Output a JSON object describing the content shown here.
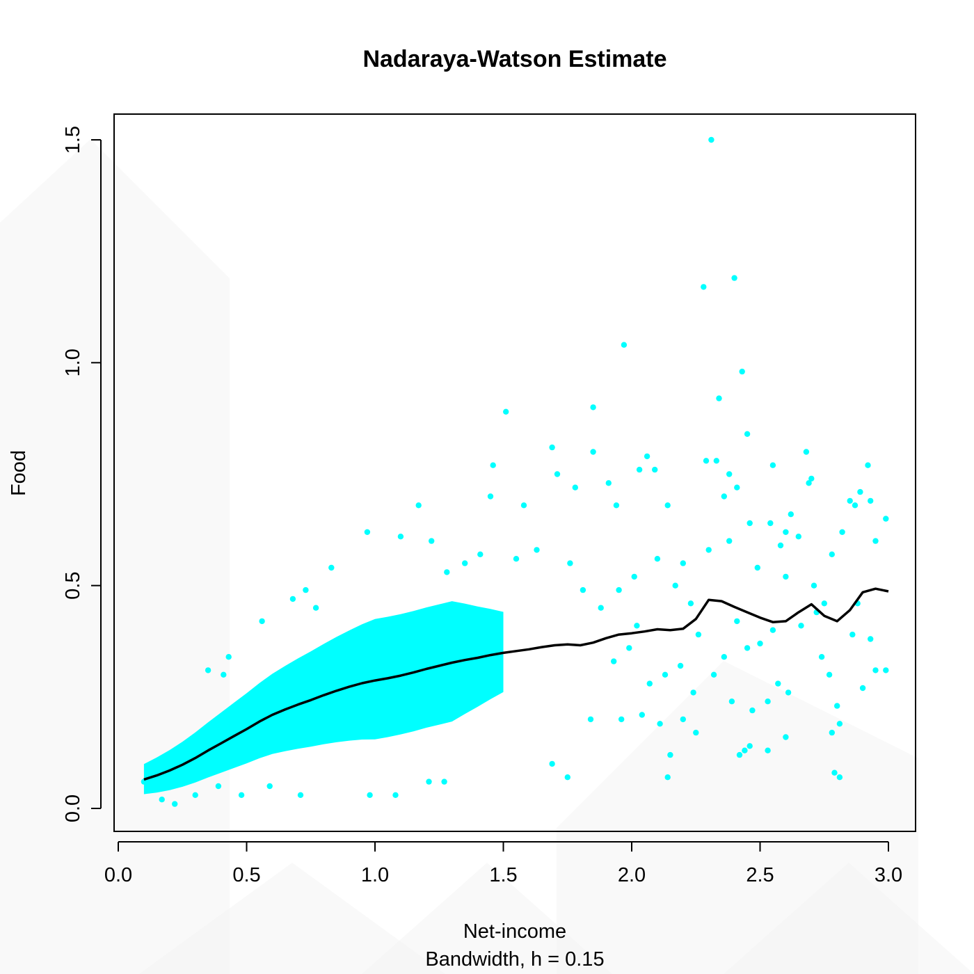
{
  "chart_data": {
    "type": "scatter",
    "title": "Nadaraya-Watson Estimate",
    "xlabel": "Net-income",
    "ylabel": "Food",
    "subtitle": "Bandwidth, h =  0.15",
    "xlim": [
      0.0,
      3.0
    ],
    "ylim": [
      0.0,
      1.5
    ],
    "xticks": [
      0.0,
      0.5,
      1.0,
      1.5,
      2.0,
      2.5,
      3.0
    ],
    "xtick_labels": [
      "0.0",
      "0.5",
      "1.0",
      "1.5",
      "2.0",
      "2.5",
      "3.0"
    ],
    "yticks": [
      0.0,
      0.5,
      1.0,
      1.5
    ],
    "ytick_labels": [
      "0.0",
      "0.5",
      "1.0",
      "1.5"
    ],
    "grid": false,
    "legend": "none",
    "colors": {
      "points": "#00ffff",
      "line": "#000000"
    },
    "series": [
      {
        "type": "scatter",
        "points": [
          [
            2.31,
            1.5
          ],
          [
            2.28,
            1.17
          ],
          [
            2.4,
            1.19
          ],
          [
            1.97,
            1.04
          ],
          [
            2.43,
            0.98
          ],
          [
            2.34,
            0.92
          ],
          [
            1.85,
            0.9
          ],
          [
            1.51,
            0.89
          ],
          [
            2.45,
            0.84
          ],
          [
            1.69,
            0.81
          ],
          [
            1.85,
            0.8
          ],
          [
            2.68,
            0.8
          ],
          [
            2.06,
            0.79
          ],
          [
            2.29,
            0.78
          ],
          [
            2.33,
            0.78
          ],
          [
            2.55,
            0.77
          ],
          [
            2.92,
            0.77
          ],
          [
            1.46,
            0.77
          ],
          [
            2.09,
            0.76
          ],
          [
            2.38,
            0.75
          ],
          [
            2.03,
            0.76
          ],
          [
            1.71,
            0.75
          ],
          [
            2.7,
            0.74
          ],
          [
            1.91,
            0.73
          ],
          [
            1.78,
            0.72
          ],
          [
            2.41,
            0.72
          ],
          [
            2.69,
            0.73
          ],
          [
            2.89,
            0.71
          ],
          [
            1.45,
            0.7
          ],
          [
            2.36,
            0.7
          ],
          [
            2.85,
            0.69
          ],
          [
            2.93,
            0.69
          ],
          [
            1.17,
            0.68
          ],
          [
            1.58,
            0.68
          ],
          [
            1.94,
            0.68
          ],
          [
            2.14,
            0.68
          ],
          [
            2.87,
            0.68
          ],
          [
            2.99,
            0.65
          ],
          [
            2.62,
            0.66
          ],
          [
            2.54,
            0.64
          ],
          [
            2.46,
            0.64
          ],
          [
            2.38,
            0.6
          ],
          [
            2.6,
            0.62
          ],
          [
            2.65,
            0.61
          ],
          [
            2.95,
            0.6
          ],
          [
            2.82,
            0.62
          ],
          [
            2.58,
            0.59
          ],
          [
            0.97,
            0.62
          ],
          [
            1.1,
            0.61
          ],
          [
            1.22,
            0.6
          ],
          [
            2.3,
            0.58
          ],
          [
            2.78,
            0.57
          ],
          [
            2.1,
            0.56
          ],
          [
            2.49,
            0.54
          ],
          [
            2.2,
            0.55
          ],
          [
            2.6,
            0.52
          ],
          [
            0.83,
            0.54
          ],
          [
            2.71,
            0.5
          ],
          [
            2.93,
            0.38
          ],
          [
            2.86,
            0.39
          ],
          [
            2.74,
            0.34
          ],
          [
            2.99,
            0.31
          ],
          [
            2.95,
            0.31
          ],
          [
            2.77,
            0.3
          ],
          [
            2.9,
            0.27
          ],
          [
            2.57,
            0.28
          ],
          [
            2.61,
            0.26
          ],
          [
            2.53,
            0.24
          ],
          [
            2.47,
            0.22
          ],
          [
            2.39,
            0.24
          ],
          [
            2.8,
            0.23
          ],
          [
            2.81,
            0.19
          ],
          [
            2.78,
            0.17
          ],
          [
            2.6,
            0.16
          ],
          [
            2.46,
            0.14
          ],
          [
            2.44,
            0.13
          ],
          [
            2.53,
            0.13
          ],
          [
            2.42,
            0.12
          ],
          [
            2.25,
            0.17
          ],
          [
            2.15,
            0.12
          ],
          [
            2.14,
            0.07
          ],
          [
            2.79,
            0.08
          ],
          [
            2.81,
            0.07
          ],
          [
            1.75,
            0.07
          ],
          [
            1.69,
            0.1
          ],
          [
            0.98,
            0.03
          ],
          [
            1.08,
            0.03
          ],
          [
            0.71,
            0.03
          ],
          [
            0.48,
            0.03
          ],
          [
            0.22,
            0.01
          ],
          [
            0.17,
            0.02
          ],
          [
            0.3,
            0.03
          ],
          [
            0.39,
            0.05
          ],
          [
            0.59,
            0.05
          ],
          [
            1.27,
            0.06
          ],
          [
            1.21,
            0.06
          ],
          [
            0.12,
            0.04
          ],
          [
            0.1,
            0.06
          ],
          [
            1.84,
            0.2
          ],
          [
            1.96,
            0.2
          ],
          [
            2.04,
            0.21
          ],
          [
            2.11,
            0.19
          ],
          [
            2.2,
            0.2
          ],
          [
            2.24,
            0.26
          ],
          [
            2.32,
            0.3
          ],
          [
            2.36,
            0.34
          ],
          [
            2.45,
            0.36
          ],
          [
            2.5,
            0.37
          ],
          [
            2.55,
            0.4
          ],
          [
            2.66,
            0.41
          ],
          [
            2.72,
            0.44
          ],
          [
            2.75,
            0.46
          ],
          [
            2.88,
            0.46
          ],
          [
            2.07,
            0.28
          ],
          [
            2.13,
            0.3
          ],
          [
            2.19,
            0.32
          ],
          [
            2.26,
            0.39
          ],
          [
            2.41,
            0.42
          ],
          [
            1.93,
            0.33
          ],
          [
            1.99,
            0.36
          ],
          [
            2.02,
            0.41
          ],
          [
            1.88,
            0.45
          ],
          [
            1.95,
            0.49
          ],
          [
            2.01,
            0.52
          ],
          [
            2.17,
            0.5
          ],
          [
            2.23,
            0.46
          ],
          [
            1.81,
            0.49
          ],
          [
            1.76,
            0.55
          ],
          [
            1.63,
            0.58
          ],
          [
            1.55,
            0.56
          ],
          [
            1.41,
            0.57
          ],
          [
            1.35,
            0.55
          ],
          [
            1.28,
            0.53
          ],
          [
            0.73,
            0.49
          ],
          [
            0.77,
            0.45
          ],
          [
            0.68,
            0.47
          ],
          [
            0.56,
            0.42
          ],
          [
            0.43,
            0.34
          ],
          [
            0.41,
            0.3
          ],
          [
            0.35,
            0.31
          ]
        ]
      },
      {
        "type": "line",
        "x": [
          0.1,
          0.15,
          0.2,
          0.25,
          0.3,
          0.35,
          0.4,
          0.45,
          0.5,
          0.55,
          0.6,
          0.65,
          0.7,
          0.75,
          0.8,
          0.85,
          0.9,
          0.95,
          1.0,
          1.05,
          1.1,
          1.15,
          1.2,
          1.25,
          1.3,
          1.35,
          1.4,
          1.45,
          1.5,
          1.55,
          1.6,
          1.65,
          1.7,
          1.75,
          1.8,
          1.85,
          1.9,
          1.95,
          2.0,
          2.05,
          2.1,
          2.15,
          2.2,
          2.25,
          2.3,
          2.35,
          2.4,
          2.45,
          2.5,
          2.55,
          2.6,
          2.65,
          2.7,
          2.75,
          2.8,
          2.85,
          2.9,
          2.95,
          3.0
        ],
        "values": [
          0.065,
          0.074,
          0.085,
          0.098,
          0.113,
          0.13,
          0.146,
          0.162,
          0.178,
          0.195,
          0.21,
          0.222,
          0.233,
          0.243,
          0.254,
          0.264,
          0.273,
          0.281,
          0.287,
          0.292,
          0.298,
          0.305,
          0.313,
          0.32,
          0.327,
          0.333,
          0.338,
          0.344,
          0.349,
          0.353,
          0.357,
          0.362,
          0.366,
          0.368,
          0.366,
          0.372,
          0.382,
          0.39,
          0.393,
          0.397,
          0.402,
          0.4,
          0.403,
          0.425,
          0.468,
          0.465,
          0.452,
          0.44,
          0.428,
          0.418,
          0.42,
          0.44,
          0.458,
          0.432,
          0.42,
          0.445,
          0.485,
          0.493,
          0.487
        ]
      }
    ]
  }
}
